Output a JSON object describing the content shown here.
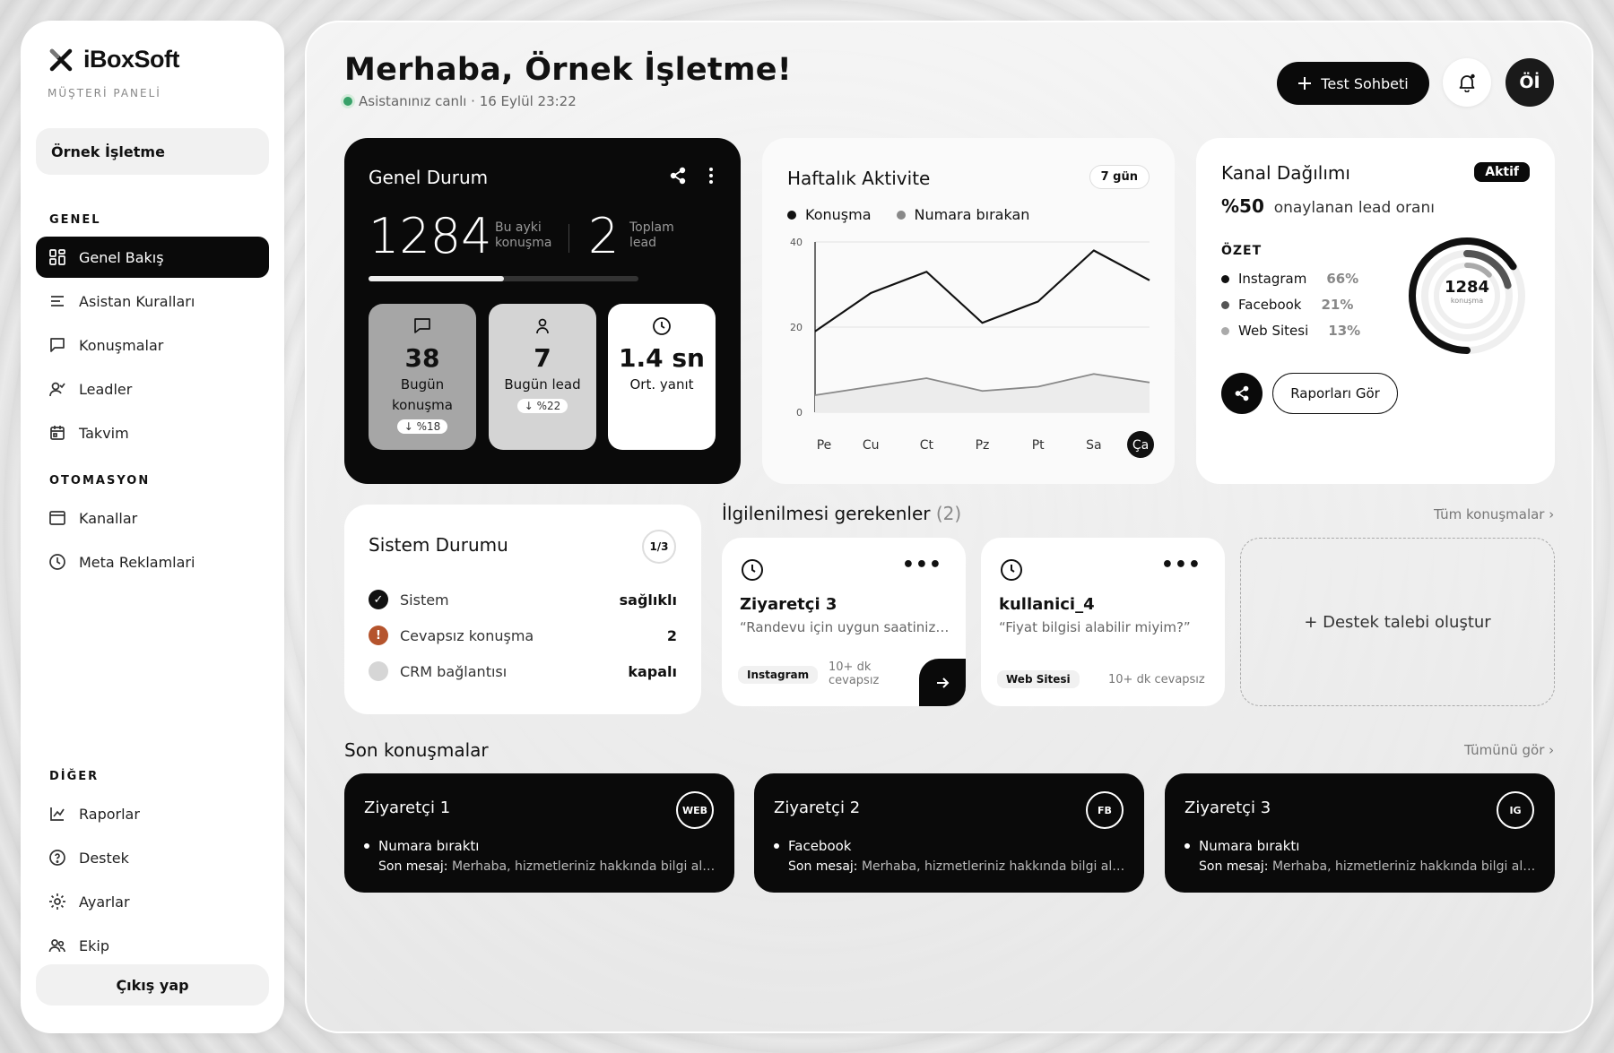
{
  "brand": {
    "name": "iBoxSoft",
    "subtitle": "MÜŞTERİ PANELİ",
    "logo_icon": "x-logo-icon"
  },
  "business": "Örnek İşletme",
  "sidebar": {
    "sections": [
      "GENEL",
      "OTOMASYON",
      "DİĞER"
    ],
    "items": [
      {
        "label": "Genel Bakış",
        "icon": "grid-icon"
      },
      {
        "label": "Asistan Kuralları",
        "icon": "list-icon"
      },
      {
        "label": "Konuşmalar",
        "icon": "chat-icon"
      },
      {
        "label": "Leadler",
        "icon": "user-check-icon"
      },
      {
        "label": "Takvim",
        "icon": "calendar-icon"
      },
      {
        "label": "Kanallar",
        "icon": "window-icon"
      },
      {
        "label": "Meta Reklamlari",
        "icon": "clock-icon"
      },
      {
        "label": "Raporlar",
        "icon": "chart-icon"
      },
      {
        "label": "Destek",
        "icon": "help-icon"
      },
      {
        "label": "Ayarlar",
        "icon": "sun-icon"
      },
      {
        "label": "Ekip",
        "icon": "team-icon"
      }
    ],
    "logout": "Çıkış yap"
  },
  "header": {
    "greeting": "Merhaba, Örnek İşletme!",
    "status": "Asistanınız canlı · 16 Eylül 23:22",
    "test_button": "Test Sohbeti",
    "avatar": "Öİ"
  },
  "overview": {
    "title": "Genel Durum",
    "monthly_count": "1284",
    "monthly_label1": "Bu ayki",
    "monthly_label2": "konuşma",
    "lead_count": "2",
    "lead_label1": "Toplam",
    "lead_label2": "lead",
    "progress": 0.5,
    "tiles": [
      {
        "value": "38",
        "label1": "Bugün",
        "label2": "konuşma",
        "badge": "↓ %18"
      },
      {
        "value": "7",
        "label": "Bugün lead",
        "badge": "↓ %22"
      },
      {
        "value": "1.4 sn",
        "label": "Ort. yanıt"
      }
    ]
  },
  "weekly": {
    "title": "Haftalık Aktivite",
    "range": "7 gün",
    "legend": [
      "Konuşma",
      "Numara bırakan"
    ]
  },
  "chart_data": {
    "type": "line",
    "title": "Haftalık Aktivite",
    "categories": [
      "Pe",
      "Cu",
      "Ct",
      "Pz",
      "Pt",
      "Sa",
      "Ça"
    ],
    "series": [
      {
        "name": "Konuşma",
        "values": [
          19,
          28,
          33,
          21,
          26,
          38,
          31
        ]
      },
      {
        "name": "Numara bırakan",
        "values": [
          4,
          6,
          8,
          5,
          6,
          9,
          7
        ]
      }
    ],
    "yticks": [
      "40",
      "20",
      "0"
    ],
    "ylim": [
      0,
      40
    ],
    "highlight": "Ça"
  },
  "channels": {
    "title": "Kanal Dağılımı",
    "badge": "Aktif",
    "rate_value": "%50",
    "rate_label": "onaylanan lead oranı",
    "summary_title": "ÖZET",
    "items": [
      {
        "name": "Instagram",
        "pct": "66%",
        "value": 66,
        "color": "#111111"
      },
      {
        "name": "Facebook",
        "pct": "21%",
        "value": 21,
        "color": "#555555"
      },
      {
        "name": "Web Sitesi",
        "pct": "13%",
        "value": 13,
        "color": "#aaaaaa"
      }
    ],
    "donut_value": "1284",
    "donut_label": "konuşma",
    "report_button": "Raporları Gör"
  },
  "system": {
    "title": "Sistem Durumu",
    "badge": "1/3",
    "rows": [
      {
        "label": "Sistem",
        "value": "sağlıklı",
        "icon": "check-icon",
        "color": "#111111"
      },
      {
        "label": "Cevapsız konuşma",
        "value": "2",
        "icon": "warning-icon",
        "color": "#b5542d"
      },
      {
        "label": "CRM bağlantısı",
        "value": "kapalı",
        "icon": "off-icon",
        "color": "#d6d6d6"
      }
    ]
  },
  "attention": {
    "title": "İlgilenilmesi gerekenler",
    "count": "(2)",
    "link": "Tüm konuşmalar ›",
    "items": [
      {
        "name": "Ziyaretçi 3",
        "message": "“Randevu için uygun saatiniz var mı?”",
        "tag": "Instagram",
        "ago1": "10+ dk",
        "ago2": "cevapsız"
      },
      {
        "name": "kullanici_4",
        "message": "“Fiyat bilgisi alabilir miyim?”",
        "tag": "Web Sitesi",
        "ago": "10+ dk cevapsız"
      }
    ],
    "create": "+ Destek talebi oluştur"
  },
  "recent": {
    "title": "Son konuşmalar",
    "link": "Tümünü gör ›",
    "items": [
      {
        "name": "Ziyaretçi 1",
        "badge": "WEB",
        "status": "Numara bıraktı",
        "last_label": "Son mesaj:",
        "last": "Merhaba, hizmetleriniz hakkında bilgi alabilir miyim?"
      },
      {
        "name": "Ziyaretçi 2",
        "badge": "FB",
        "status": "Facebook",
        "last_label": "Son mesaj:",
        "last": "Merhaba, hizmetleriniz hakkında bilgi alabilir miyim?"
      },
      {
        "name": "Ziyaretçi 3",
        "badge": "IG",
        "status": "Numara bıraktı",
        "last_label": "Son mesaj:",
        "last": "Merhaba, hizmetleriniz hakkında bilgi alabilir miyim?"
      }
    ]
  }
}
